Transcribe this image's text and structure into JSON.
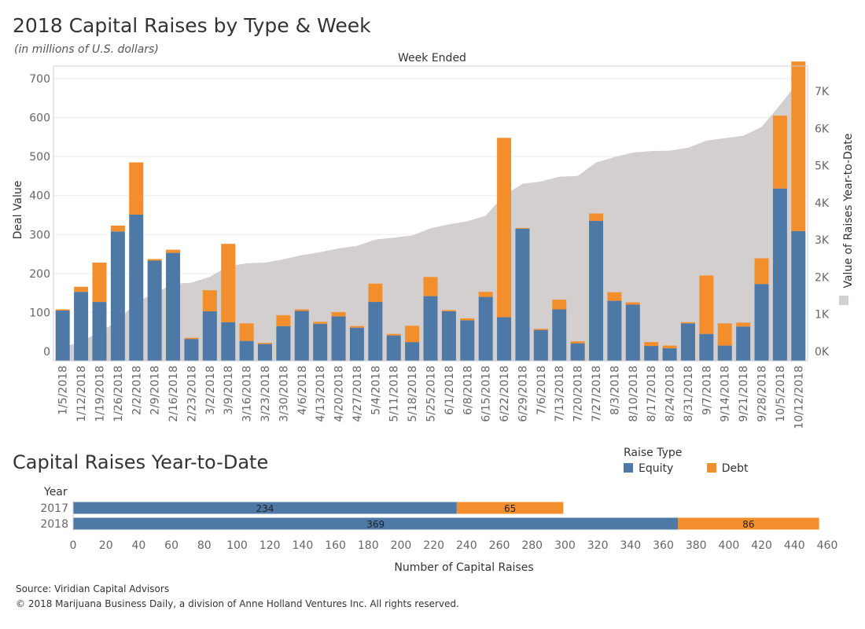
{
  "header": {
    "title": "2018 Capital Raises by Type & Week",
    "subtitle": "(in millions of U.S. dollars)"
  },
  "colors": {
    "equity": "#4e79a7",
    "debt": "#f28e2b",
    "ytd_area": "#d4cfcf"
  },
  "legend": {
    "title": "Raise Type",
    "items": [
      {
        "label": "Equity",
        "color": "#4e79a7"
      },
      {
        "label": "Debt",
        "color": "#f28e2b"
      }
    ]
  },
  "footer": {
    "source": "Source: Viridian Capital Advisors",
    "copyright": "© 2018 Marijuana Business Daily, a division of Anne Holland Ventures Inc. All rights reserved."
  },
  "chart_data": [
    {
      "type": "bar",
      "stacked": true,
      "dual_axis": true,
      "title": "Week Ended",
      "ylabel": "Deal Value",
      "y2label": "Value of Raises Year-to-Date",
      "ylim": [
        0,
        740
      ],
      "y2lim": [
        0,
        7400
      ],
      "yticks": [
        0,
        100,
        200,
        300,
        400,
        500,
        600,
        700
      ],
      "y2ticks": [
        0,
        1000,
        2000,
        3000,
        4000,
        5000,
        6000,
        7000
      ],
      "y2ticklabels": [
        "0K",
        "1K",
        "2K",
        "3K",
        "4K",
        "5K",
        "6K",
        "7K"
      ],
      "grid": true,
      "categories": [
        "1/5/2018",
        "1/12/2018",
        "1/19/2018",
        "1/26/2018",
        "2/2/2018",
        "2/9/2018",
        "2/16/2018",
        "2/23/2018",
        "3/2/2018",
        "3/9/2018",
        "3/16/2018",
        "3/23/2018",
        "3/30/2018",
        "4/6/2018",
        "4/13/2018",
        "4/20/2018",
        "4/27/2018",
        "5/4/2018",
        "5/11/2018",
        "5/18/2018",
        "5/25/2018",
        "6/1/2018",
        "6/8/2018",
        "6/15/2018",
        "6/22/2018",
        "6/29/2018",
        "7/6/2018",
        "7/13/2018",
        "7/20/2018",
        "7/27/2018",
        "8/3/2018",
        "8/10/2018",
        "8/17/2018",
        "8/24/2018",
        "8/31/2018",
        "9/7/2018",
        "9/14/2018",
        "9/21/2018",
        "9/28/2018",
        "10/5/2018",
        "10/12/2018"
      ],
      "series": [
        {
          "name": "Equity",
          "values": [
            105,
            153,
            127,
            308,
            351,
            233,
            253,
            32,
            103,
            75,
            27,
            19,
            65,
            104,
            71,
            90,
            61,
            127,
            41,
            24,
            142,
            103,
            80,
            140,
            88,
            315,
            55,
            108,
            21,
            335,
            130,
            120,
            14,
            8,
            72,
            45,
            15,
            64,
            173,
            418,
            309
          ]
        },
        {
          "name": "Debt",
          "values": [
            3,
            13,
            101,
            15,
            134,
            4,
            8,
            3,
            54,
            201,
            45,
            3,
            28,
            4,
            5,
            11,
            4,
            47,
            4,
            42,
            49,
            3,
            5,
            13,
            460,
            2,
            3,
            25,
            5,
            19,
            22,
            6,
            10,
            7,
            3,
            150,
            57,
            10,
            66,
            187,
            435
          ]
        },
        {
          "name": "Value of Raises Year-to-Date",
          "chart": "area",
          "axis": "right",
          "values": [
            110,
            260,
            520,
            820,
            1330,
            1560,
            1820,
            1850,
            2010,
            2290,
            2370,
            2390,
            2480,
            2590,
            2670,
            2770,
            2840,
            3010,
            3060,
            3120,
            3310,
            3420,
            3500,
            3650,
            4200,
            4510,
            4570,
            4700,
            4720,
            5080,
            5230,
            5350,
            5390,
            5400,
            5480,
            5670,
            5740,
            5800,
            6040,
            6630,
            7260
          ]
        }
      ]
    },
    {
      "type": "bar",
      "orientation": "horizontal",
      "stacked": true,
      "title": "Capital Raises Year-to-Date",
      "ylabel": "Year",
      "xlabel": "Number of Capital Raises",
      "xlim": [
        0,
        460
      ],
      "xticks": [
        0,
        20,
        40,
        60,
        80,
        100,
        120,
        140,
        160,
        180,
        200,
        220,
        240,
        260,
        280,
        300,
        320,
        340,
        360,
        380,
        400,
        420,
        440,
        460
      ],
      "categories": [
        "2017",
        "2018"
      ],
      "series": [
        {
          "name": "Equity",
          "values": [
            234,
            369
          ]
        },
        {
          "name": "Debt",
          "values": [
            65,
            86
          ]
        }
      ]
    }
  ]
}
